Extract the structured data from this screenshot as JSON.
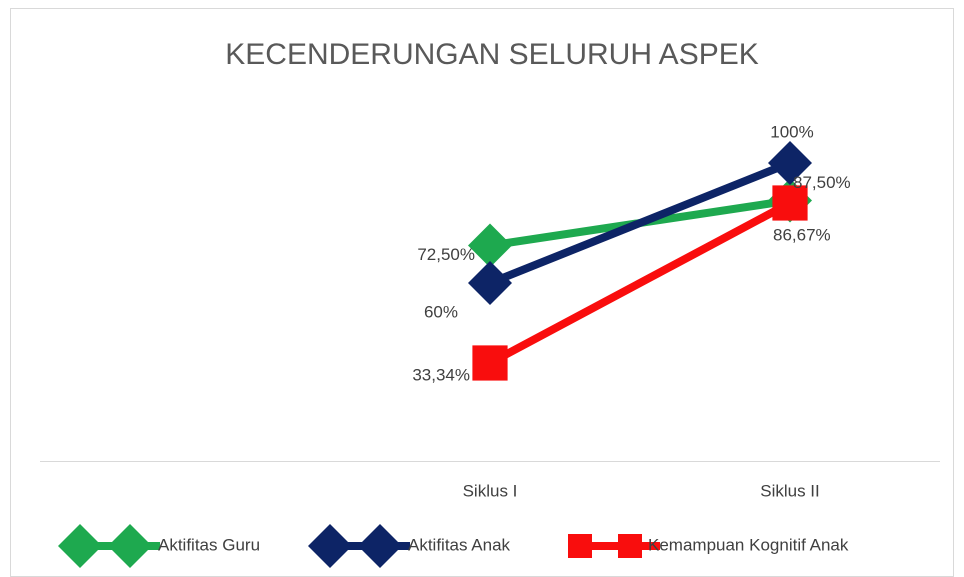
{
  "chart_data": {
    "type": "line",
    "title": "KECENDERUNGAN SELURUH ASPEK",
    "categories": [
      null,
      "Siklus I",
      "Siklus II"
    ],
    "ylim": [
      0,
      120
    ],
    "series": [
      {
        "name": "Aktifitas Guru",
        "color": "#1ea94f",
        "marker": "diamond",
        "values": [
          null,
          72.5,
          87.5
        ],
        "value_labels": [
          null,
          "72,50%",
          "87,50%"
        ]
      },
      {
        "name": "Aktifitas Anak",
        "color": "#0d2466",
        "marker": "diamond",
        "values": [
          null,
          60,
          100
        ],
        "value_labels": [
          null,
          "60%",
          "100%"
        ]
      },
      {
        "name": "Kemampuan Kognitif Anak",
        "color": "#f90d0d",
        "marker": "square",
        "values": [
          null,
          33.34,
          86.67
        ],
        "value_labels": [
          null,
          "33,34%",
          "86,67%"
        ]
      }
    ]
  }
}
